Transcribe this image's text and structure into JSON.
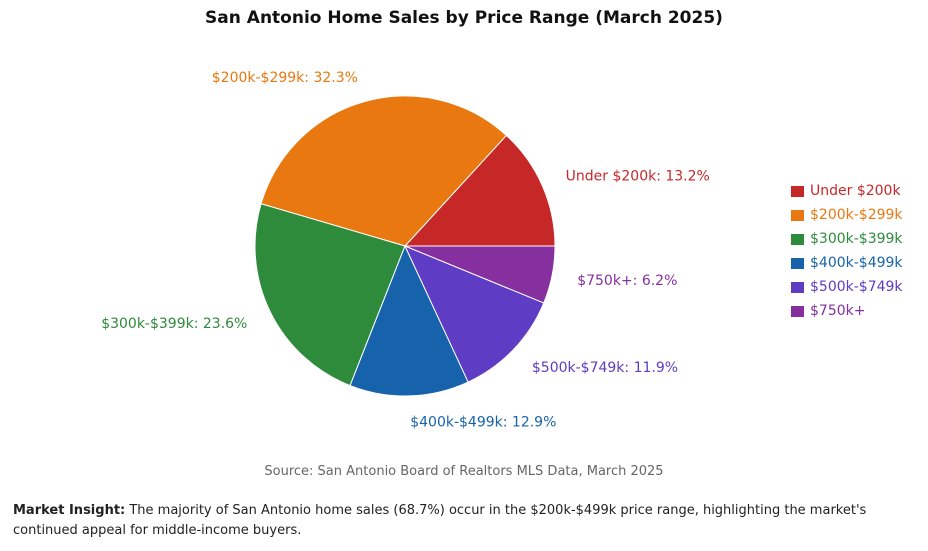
{
  "chart_data": {
    "type": "pie",
    "title": "San Antonio Home Sales by Price Range (March 2025)",
    "categories": [
      "Under $200k",
      "$200k-$299k",
      "$300k-$399k",
      "$400k-$499k",
      "$500k-$749k",
      "$750k+"
    ],
    "values": [
      13.2,
      32.3,
      23.6,
      12.9,
      11.9,
      6.2
    ],
    "labels": [
      "Under $200k: 13.2%",
      "$200k-$299k: 32.3%",
      "$300k-$399k: 23.6%",
      "$400k-$499k: 12.9%",
      "$500k-$749k: 11.9%",
      "$750k+: 6.2%"
    ],
    "colors": [
      "#c62828",
      "#e8780f",
      "#2e8b3c",
      "#1763ab",
      "#5e3cc4",
      "#86309f"
    ],
    "legend_position": "right",
    "source": "Source: San Antonio Board of Realtors MLS Data, March 2025"
  },
  "insight": {
    "label": "Market Insight:",
    "text": " The majority of San Antonio home sales (68.7%) occur in the $200k-$499k price range, highlighting the market's continued appeal for middle-income buyers."
  }
}
